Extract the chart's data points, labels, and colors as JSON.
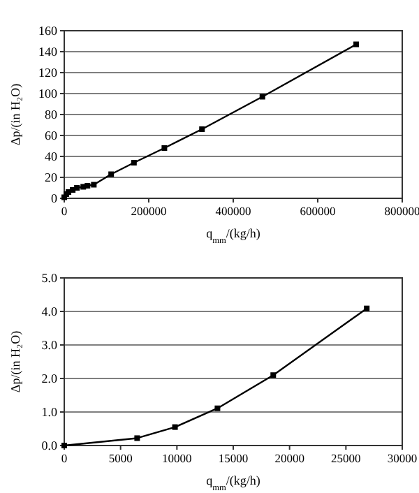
{
  "chart_data": [
    {
      "type": "line",
      "xlabel": "q$_{mm}$/(kg/h)",
      "ylabel": "Δp/(in H₂O)",
      "x": [
        0,
        5000,
        10000,
        20000,
        30000,
        45000,
        55000,
        70000,
        111000,
        165000,
        237000,
        326000,
        469000,
        691000
      ],
      "series": [
        {
          "color": "#000000",
          "values": [
            1,
            4,
            6,
            8,
            10,
            11,
            12,
            13,
            23,
            34,
            48,
            66,
            97,
            147
          ]
        }
      ],
      "xlim": [
        0,
        800000
      ],
      "xticks": [
        0,
        200000,
        400000,
        600000,
        800000
      ],
      "ylim": [
        0,
        160
      ],
      "yticks": [
        0,
        20,
        40,
        60,
        80,
        100,
        120,
        140,
        160
      ],
      "grid": "y",
      "marker": "square",
      "line_style": "solid"
    },
    {
      "type": "line",
      "xlabel": "q$_{mm}$/(kg/h)",
      "ylabel": "Δp/(in H₂O)",
      "x": [
        0,
        6470,
        9830,
        13600,
        18550,
        26850
      ],
      "series": [
        {
          "color": "#000000",
          "values": [
            0,
            0.22,
            0.55,
            1.11,
            2.1,
            4.09
          ]
        }
      ],
      "xlim": [
        0,
        30000
      ],
      "xticks": [
        0,
        5000,
        10000,
        15000,
        20000,
        25000,
        30000
      ],
      "ylim": [
        0,
        5
      ],
      "yticks": [
        {
          "value": 0,
          "label": "0.0"
        },
        {
          "value": 1,
          "label": "1.0"
        },
        {
          "value": 2,
          "label": "2.0"
        },
        {
          "value": 3,
          "label": "3.0"
        },
        {
          "value": 4,
          "label": "4.0"
        },
        {
          "value": 5,
          "label": "5.0"
        }
      ],
      "grid": "y",
      "marker": "square",
      "line_style": "solid"
    }
  ]
}
